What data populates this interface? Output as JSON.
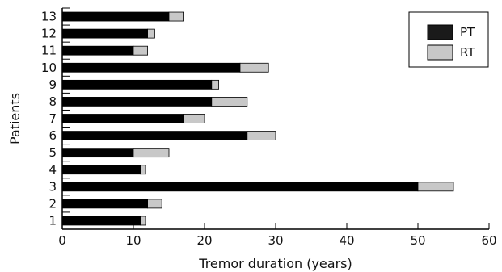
{
  "chart_data": {
    "type": "bar",
    "orientation": "horizontal",
    "stacked": true,
    "title": "",
    "xlabel": "Tremor duration (years)",
    "ylabel": "Patients",
    "xlim": [
      0,
      60
    ],
    "xticks": [
      0,
      10,
      20,
      30,
      40,
      50,
      60
    ],
    "categories": [
      "1",
      "2",
      "3",
      "4",
      "5",
      "6",
      "7",
      "8",
      "9",
      "10",
      "11",
      "12",
      "13"
    ],
    "series": [
      {
        "name": "PT",
        "color": "#000000",
        "values": [
          11,
          12,
          50,
          11,
          10,
          26,
          17,
          21,
          21,
          25,
          10,
          12,
          15
        ]
      },
      {
        "name": "RT",
        "color": "#c8c8c8",
        "values": [
          0.7,
          2,
          5,
          0.7,
          5,
          4,
          3,
          5,
          1,
          4,
          2,
          1,
          2
        ]
      }
    ],
    "legend": {
      "position": "top-right"
    },
    "grid": false
  }
}
